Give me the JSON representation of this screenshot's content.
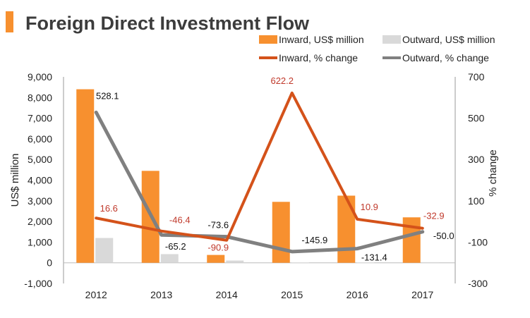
{
  "title": "Foreign Direct Investment Flow",
  "colors": {
    "accent": "#f7902f",
    "inward_bar": "#f7902f",
    "outward_bar": "#d9d9d9",
    "inward_line": "#d4521a",
    "outward_line": "#808080",
    "inward_label": "#c0392b",
    "axis": "#999999"
  },
  "chart_data": {
    "type": "bar",
    "title": "Foreign Direct Investment Flow",
    "categories": [
      "2012",
      "2013",
      "2014",
      "2015",
      "2016",
      "2017"
    ],
    "series": [
      {
        "name": "Inward, US$ million",
        "type": "bar",
        "axis": "left",
        "values": [
          8400,
          4450,
          380,
          2950,
          3250,
          2200
        ]
      },
      {
        "name": "Outward, US$ million",
        "type": "bar",
        "axis": "left",
        "values": [
          1200,
          420,
          110,
          10,
          20,
          30
        ]
      },
      {
        "name": "Inward, % change",
        "type": "line",
        "axis": "right",
        "values": [
          16.6,
          -46.4,
          -90.9,
          622.2,
          10.9,
          -32.9
        ],
        "labels": [
          "16.6",
          "-46.4",
          "-90.9",
          "622.2",
          "10.9",
          "-32.9"
        ]
      },
      {
        "name": "Outward, % change",
        "type": "line",
        "axis": "right",
        "values": [
          528.1,
          -65.2,
          -73.6,
          -145.9,
          -131.4,
          -50.0
        ],
        "labels": [
          "528.1",
          "-65.2",
          "-73.6",
          "-145.9",
          "-131.4",
          "-50.0"
        ]
      }
    ],
    "y_left": {
      "label": "US$ million",
      "ylim": [
        -1000,
        9000
      ],
      "ticks": [
        "-1,000",
        "0",
        "1,000",
        "2,000",
        "3,000",
        "4,000",
        "5,000",
        "6,000",
        "7,000",
        "8,000",
        "9,000"
      ]
    },
    "y_right": {
      "label": "% change",
      "ylim": [
        -300,
        700
      ],
      "ticks": [
        "-300",
        "-100",
        "100",
        "300",
        "500",
        "700"
      ]
    },
    "grid": false,
    "legend_position": "top-right"
  }
}
